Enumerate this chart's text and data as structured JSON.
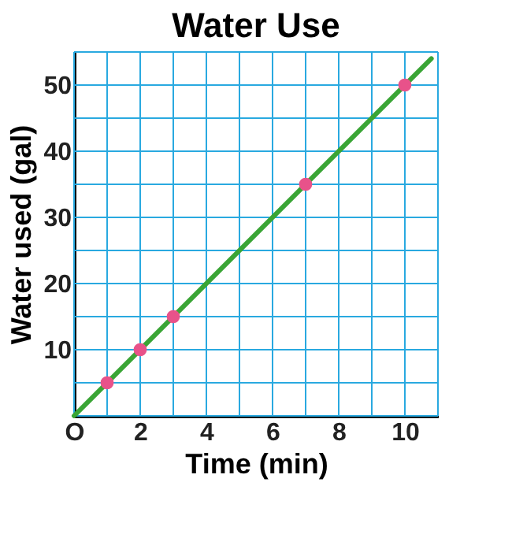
{
  "chart_data": {
    "type": "line",
    "title": "Water Use",
    "xlabel": "Time (min)",
    "ylabel": "Water used (gal)",
    "xlim": [
      0,
      11
    ],
    "ylim": [
      0,
      55
    ],
    "xticks": [
      {
        "value": 0,
        "label": "O"
      },
      {
        "value": 1,
        "label": null
      },
      2,
      {
        "value": 3,
        "label": null
      },
      4,
      {
        "value": 5,
        "label": null
      },
      6,
      {
        "value": 7,
        "label": null
      },
      8,
      {
        "value": 9,
        "label": null
      },
      10,
      {
        "value": 11,
        "label": null
      }
    ],
    "yticks": [
      {
        "value": 0,
        "label": null
      },
      {
        "value": 5,
        "label": null
      },
      10,
      {
        "value": 15,
        "label": null
      },
      20,
      {
        "value": 25,
        "label": null
      },
      30,
      {
        "value": 35,
        "label": null
      },
      40,
      {
        "value": 45,
        "label": null
      },
      50,
      {
        "value": 55,
        "label": null
      }
    ],
    "grid": true,
    "series": [
      {
        "type": "line",
        "color": "#3aa535",
        "x": [
          0,
          10.8
        ],
        "values": [
          0,
          54
        ]
      },
      {
        "type": "scatter",
        "color": "#e8528a",
        "x": [
          1,
          2,
          3,
          7,
          10
        ],
        "values": [
          5,
          10,
          15,
          35,
          50
        ],
        "marker": "circle"
      }
    ]
  }
}
